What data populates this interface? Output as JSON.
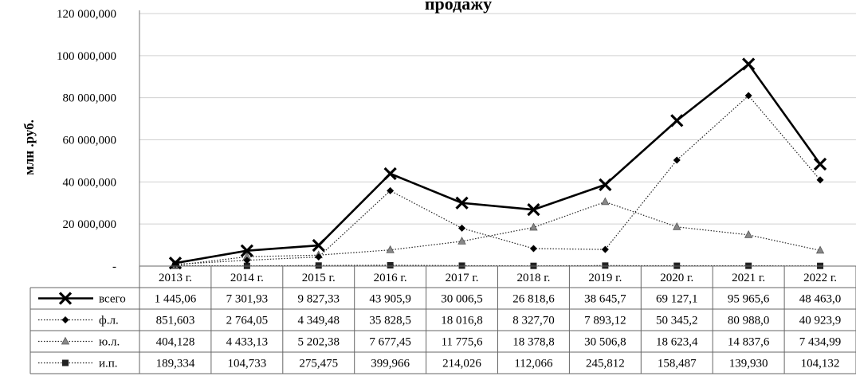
{
  "chart_data": {
    "type": "line",
    "title": "продажу",
    "ylabel": "млн .руб.",
    "ylim": [
      0,
      120000000
    ],
    "y_ticks": [
      "-",
      "20 000,000",
      "40 000,000",
      "60 000,000",
      "80 000,000",
      "100 000,000",
      "120 000,000"
    ],
    "grid": true,
    "legend_placement": "data-table",
    "categories": [
      "2013 г.",
      "2014 г.",
      "2015 г.",
      "2016 г.",
      "2017 г.",
      "2018 г.",
      "2019 г.",
      "2020 г.",
      "2021 г.",
      "2022 г."
    ],
    "series": [
      {
        "name": "всего",
        "values": [
          1445060,
          7301930,
          9827330,
          43905900,
          30006500,
          26818600,
          38645700,
          69127100,
          95965600,
          48463000
        ],
        "table_values": [
          "1 445,06",
          "7 301,93",
          "9 827,33",
          "43 905,9",
          "30 006,5",
          "26 818,6",
          "38 645,7",
          "69 127,1",
          "95 965,6",
          "48 463,0"
        ],
        "style": "solid-bold",
        "marker": "x"
      },
      {
        "name": "ф.л.",
        "values": [
          851603,
          2764050,
          4349480,
          35828500,
          18016800,
          8327700,
          7893120,
          50345200,
          80988000,
          40923900
        ],
        "table_values": [
          "851,603",
          "2 764,05",
          "4 349,48",
          "35 828,5",
          "18 016,8",
          "8 327,70",
          "7 893,12",
          "50 345,2",
          "80 988,0",
          "40 923,9"
        ],
        "style": "dotted",
        "marker": "diamond"
      },
      {
        "name": "ю.л.",
        "values": [
          404128,
          4433130,
          5202380,
          7677450,
          11775600,
          18378800,
          30506800,
          18623400,
          14837600,
          7434990
        ],
        "table_values": [
          "404,128",
          "4 433,13",
          "5 202,38",
          "7 677,45",
          "11 775,6",
          "18 378,8",
          "30 506,8",
          "18 623,4",
          "14 837,6",
          "7 434,99"
        ],
        "style": "dotted",
        "marker": "triangle"
      },
      {
        "name": "и.п.",
        "values": [
          189334,
          104733,
          275475,
          399966,
          214026,
          112066,
          245812,
          158487,
          139930,
          104132
        ],
        "table_values": [
          "189,334",
          "104,733",
          "275,475",
          "399,966",
          "214,026",
          "112,066",
          "245,812",
          "158,487",
          "139,930",
          "104,132"
        ],
        "style": "dotted",
        "marker": "square"
      }
    ]
  }
}
